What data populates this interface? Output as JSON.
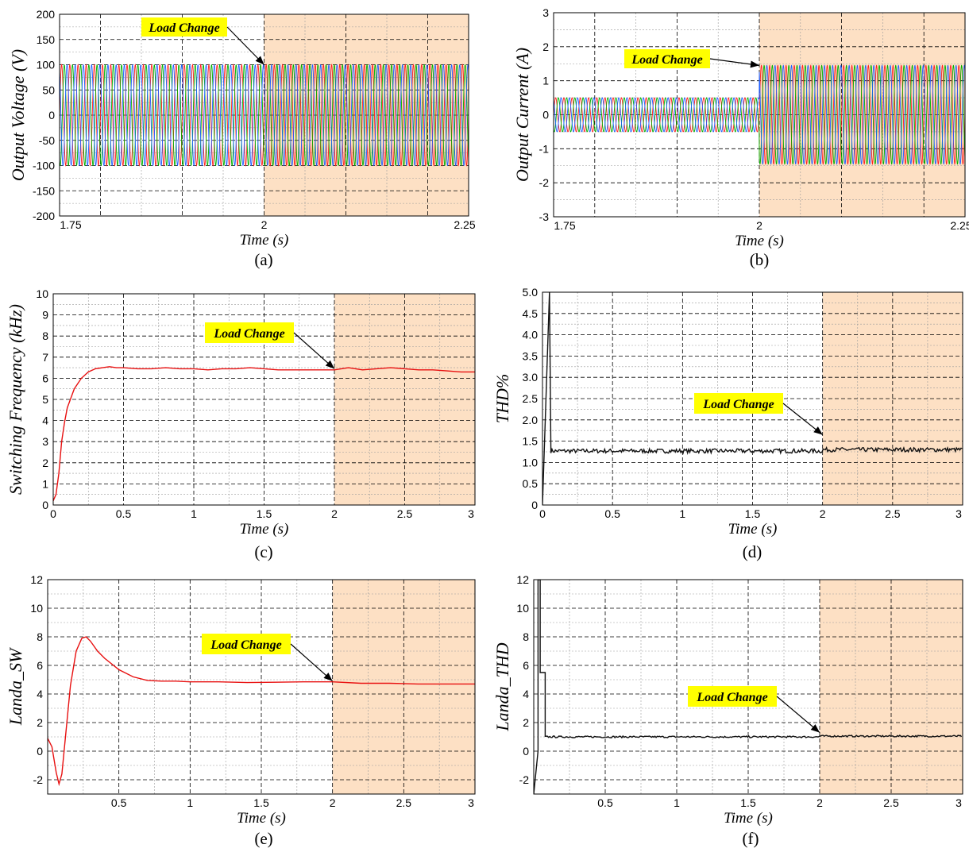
{
  "chart_data": [
    {
      "type": "line",
      "id": "a",
      "panel_label": "(a)",
      "xlabel": "Time (s)",
      "ylabel": "Output Voltage (V)",
      "xlim": [
        1.75,
        2.25
      ],
      "ylim": [
        -200,
        200
      ],
      "xticks": [
        1.75,
        2,
        2.25
      ],
      "yticks": [
        200,
        150,
        100,
        50,
        0,
        -50,
        -100,
        -150,
        -200
      ],
      "shade_from": 2,
      "annotation": "Load Change",
      "annotation_point": [
        2.0,
        100
      ],
      "waveform": {
        "kind": "three-phase-sine",
        "frequency_hz": 100,
        "amplitude_before": 100,
        "amplitude_after": 100,
        "change_at": 2
      },
      "series": [
        {
          "name": "",
          "color": "#ff2020",
          "phase_deg": 0
        },
        {
          "name": "",
          "color": "#00b000",
          "phase_deg": -120
        },
        {
          "name": "",
          "color": "#2060ff",
          "phase_deg": 120
        }
      ]
    },
    {
      "type": "line",
      "id": "b",
      "panel_label": "(b)",
      "xlabel": "Time (s)",
      "ylabel": "Output Current (A)",
      "xlim": [
        1.75,
        2.25
      ],
      "ylim": [
        -3,
        3
      ],
      "xticks": [
        1.75,
        2,
        2.25
      ],
      "yticks": [
        3,
        2,
        1,
        0,
        -1,
        -2,
        -3
      ],
      "shade_from": 2,
      "annotation": "Load Change",
      "annotation_point": [
        2.0,
        1.45
      ],
      "waveform": {
        "kind": "three-phase-sine",
        "frequency_hz": 100,
        "amplitude_before": 0.5,
        "amplitude_after": 1.45,
        "change_at": 2
      },
      "series": [
        {
          "name": "",
          "color": "#ff2020",
          "phase_deg": 0
        },
        {
          "name": "",
          "color": "#00b000",
          "phase_deg": -120
        },
        {
          "name": "",
          "color": "#2060ff",
          "phase_deg": 120
        }
      ]
    },
    {
      "type": "line",
      "id": "c",
      "panel_label": "(c)",
      "xlabel": "Time (s)",
      "ylabel": "Switching Frequency (kHz)",
      "xlim": [
        0,
        3
      ],
      "ylim": [
        0,
        10
      ],
      "xticks": [
        0,
        0.5,
        1,
        1.5,
        2,
        2.5,
        3
      ],
      "yticks": [
        10,
        9,
        8,
        7,
        6,
        5,
        4,
        3,
        2,
        1,
        0
      ],
      "shade_from": 2,
      "annotation": "Load Change",
      "annotation_point": [
        2.0,
        6.45
      ],
      "series": [
        {
          "name": "",
          "color": "#e81010",
          "x": [
            0,
            0.02,
            0.04,
            0.06,
            0.08,
            0.1,
            0.15,
            0.2,
            0.25,
            0.3,
            0.35,
            0.4,
            0.45,
            0.5,
            0.6,
            0.7,
            0.8,
            0.9,
            1.0,
            1.1,
            1.2,
            1.3,
            1.4,
            1.5,
            1.6,
            1.7,
            1.8,
            1.9,
            2.0,
            2.1,
            2.2,
            2.3,
            2.4,
            2.5,
            2.6,
            2.7,
            2.8,
            2.9,
            3.0
          ],
          "y": [
            0.2,
            0.5,
            1.5,
            3.0,
            3.9,
            4.6,
            5.5,
            6.0,
            6.3,
            6.45,
            6.5,
            6.55,
            6.5,
            6.5,
            6.45,
            6.45,
            6.5,
            6.45,
            6.45,
            6.4,
            6.45,
            6.45,
            6.5,
            6.45,
            6.4,
            6.4,
            6.4,
            6.4,
            6.4,
            6.5,
            6.4,
            6.45,
            6.5,
            6.45,
            6.4,
            6.4,
            6.35,
            6.3,
            6.3
          ]
        }
      ]
    },
    {
      "type": "line",
      "id": "d",
      "panel_label": "(d)",
      "xlabel": "Time (s)",
      "ylabel": "THD%",
      "xlim": [
        0,
        3
      ],
      "ylim": [
        0,
        5
      ],
      "xticks": [
        0,
        0.5,
        1,
        1.5,
        2,
        2.5,
        3
      ],
      "yticks": [
        "5.0",
        "4.5",
        "4.0",
        "3.5",
        "3.0",
        "2.5",
        "2.0",
        "1.5",
        "1.0",
        "0.5",
        "0"
      ],
      "shade_from": 2,
      "annotation": "Load Change",
      "annotation_point": [
        2.0,
        1.65
      ],
      "series": [
        {
          "name": "",
          "color": "#111111",
          "spike_at": 0.05,
          "spike_top": 5.0,
          "baseline_before": 1.27,
          "baseline_after": 1.3,
          "noise": 0.05
        }
      ]
    },
    {
      "type": "line",
      "id": "e",
      "panel_label": "(e)",
      "xlabel": "Time (s)",
      "ylabel": "Landa_SW",
      "xlim": [
        0,
        3
      ],
      "ylim": [
        -3,
        12
      ],
      "xticks": [
        0.5,
        1,
        1.5,
        2,
        2.5,
        3
      ],
      "yticks": [
        12,
        10,
        8,
        6,
        4,
        2,
        0,
        -2
      ],
      "shade_from": 2,
      "annotation": "Load Change",
      "annotation_point": [
        2.0,
        4.9
      ],
      "series": [
        {
          "name": "",
          "color": "#e81010",
          "x": [
            0,
            0.03,
            0.06,
            0.08,
            0.1,
            0.13,
            0.16,
            0.2,
            0.24,
            0.27,
            0.3,
            0.35,
            0.4,
            0.5,
            0.6,
            0.7,
            0.8,
            0.9,
            1.0,
            1.2,
            1.4,
            1.6,
            1.8,
            2.0,
            2.2,
            2.4,
            2.6,
            2.8,
            3.0
          ],
          "y": [
            0.9,
            0.3,
            -1.5,
            -2.3,
            -1.6,
            1.5,
            4.6,
            7.0,
            7.9,
            8.0,
            7.7,
            7.0,
            6.5,
            5.7,
            5.2,
            4.95,
            4.9,
            4.9,
            4.85,
            4.85,
            4.8,
            4.82,
            4.85,
            4.85,
            4.75,
            4.75,
            4.7,
            4.7,
            4.7
          ]
        }
      ]
    },
    {
      "type": "line",
      "id": "f",
      "panel_label": "(f)",
      "xlabel": "Time (s)",
      "ylabel": "Landa_THD",
      "xlim": [
        0,
        3
      ],
      "ylim": [
        -3,
        12
      ],
      "xticks": [
        0.5,
        1,
        1.5,
        2,
        2.5,
        3
      ],
      "yticks": [
        12,
        10,
        8,
        6,
        4,
        2,
        0,
        -2
      ],
      "shade_from": 2,
      "annotation": "Load Change",
      "annotation_point": [
        2.0,
        1.3
      ],
      "series": [
        {
          "name": "",
          "color": "#111111",
          "spike_at": 0.03,
          "spike_top": 12,
          "spike_bottom": 0,
          "plateau": 5.5,
          "plateau_end": 0.08,
          "baseline_before": 1.0,
          "baseline_after": 1.05,
          "noise": 0.06
        }
      ]
    }
  ],
  "colors": {
    "shade": "#fde0c4",
    "annotation_bg": "#ffff00",
    "frame": "#000000"
  }
}
